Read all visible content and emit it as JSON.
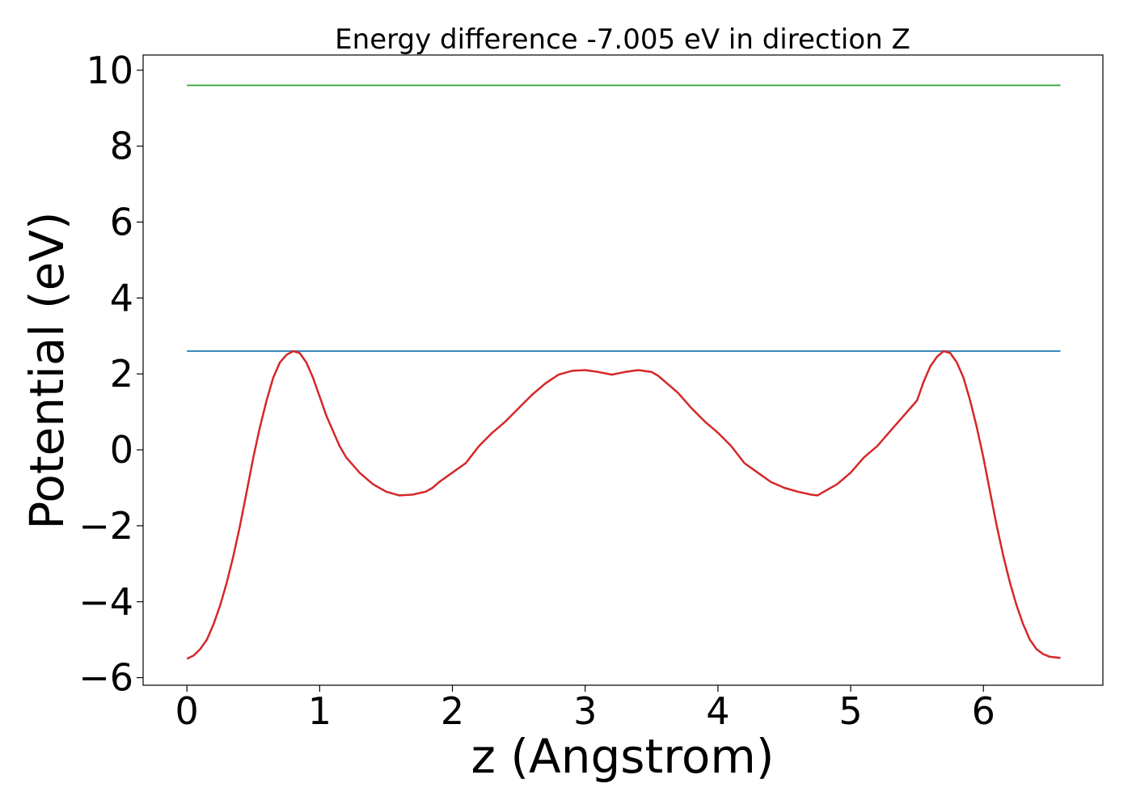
{
  "chart_data": {
    "type": "line",
    "title": "Energy difference -7.005 eV in direction Z",
    "xlabel": "z (Angstrom)",
    "ylabel": "Potential (eV)",
    "xlim": [
      -0.33,
      6.9
    ],
    "ylim": [
      -6.2,
      10.4
    ],
    "xticks": [
      0,
      1,
      2,
      3,
      4,
      5,
      6
    ],
    "yticks": [
      -6,
      -4,
      -2,
      0,
      2,
      4,
      6,
      8,
      10
    ],
    "xtick_labels": [
      "0",
      "1",
      "2",
      "3",
      "4",
      "5",
      "6"
    ],
    "ytick_labels": [
      "−6",
      "−4",
      "−2",
      "0",
      "2",
      "4",
      "6",
      "8",
      "10"
    ],
    "grid": false,
    "series": [
      {
        "color": "#2ca02c",
        "x": [
          0,
          6.58
        ],
        "y": [
          9.6,
          9.6
        ]
      },
      {
        "color": "#1f77b4",
        "x": [
          0,
          6.58
        ],
        "y": [
          2.6,
          2.6
        ]
      },
      {
        "color": "#d62728",
        "x": [
          0.0,
          0.05,
          0.1,
          0.15,
          0.2,
          0.25,
          0.3,
          0.35,
          0.4,
          0.45,
          0.5,
          0.55,
          0.6,
          0.65,
          0.7,
          0.75,
          0.8,
          0.85,
          0.9,
          0.95,
          1.0,
          1.05,
          1.1,
          1.15,
          1.2,
          1.3,
          1.4,
          1.5,
          1.6,
          1.7,
          1.8,
          1.85,
          1.9,
          2.0,
          2.1,
          2.2,
          2.3,
          2.4,
          2.5,
          2.6,
          2.7,
          2.8,
          2.9,
          3.0,
          3.1,
          3.2,
          3.3,
          3.4,
          3.5,
          3.55,
          3.6,
          3.7,
          3.8,
          3.9,
          4.0,
          4.1,
          4.2,
          4.3,
          4.4,
          4.5,
          4.6,
          4.7,
          4.75,
          4.8,
          4.9,
          5.0,
          5.1,
          5.2,
          5.3,
          5.4,
          5.5,
          5.55,
          5.6,
          5.65,
          5.7,
          5.75,
          5.8,
          5.85,
          5.9,
          5.95,
          6.0,
          6.05,
          6.1,
          6.15,
          6.2,
          6.25,
          6.3,
          6.35,
          6.4,
          6.45,
          6.5,
          6.55,
          6.58
        ],
        "y": [
          -5.5,
          -5.42,
          -5.25,
          -5.0,
          -4.6,
          -4.1,
          -3.5,
          -2.8,
          -2.0,
          -1.1,
          -0.2,
          0.6,
          1.3,
          1.9,
          2.3,
          2.5,
          2.6,
          2.55,
          2.3,
          1.9,
          1.4,
          0.9,
          0.5,
          0.1,
          -0.2,
          -0.6,
          -0.9,
          -1.1,
          -1.2,
          -1.18,
          -1.1,
          -1.0,
          -0.85,
          -0.6,
          -0.35,
          0.1,
          0.45,
          0.75,
          1.1,
          1.45,
          1.75,
          1.98,
          2.08,
          2.1,
          2.05,
          1.98,
          2.05,
          2.1,
          2.05,
          1.95,
          1.8,
          1.5,
          1.1,
          0.75,
          0.45,
          0.1,
          -0.35,
          -0.6,
          -0.85,
          -1.0,
          -1.1,
          -1.18,
          -1.2,
          -1.1,
          -0.9,
          -0.6,
          -0.2,
          0.1,
          0.5,
          0.9,
          1.3,
          1.8,
          2.2,
          2.45,
          2.6,
          2.55,
          2.3,
          1.9,
          1.3,
          0.6,
          -0.2,
          -1.1,
          -2.0,
          -2.8,
          -3.5,
          -4.1,
          -4.6,
          -5.0,
          -5.25,
          -5.38,
          -5.45,
          -5.47,
          -5.48
        ]
      }
    ]
  }
}
